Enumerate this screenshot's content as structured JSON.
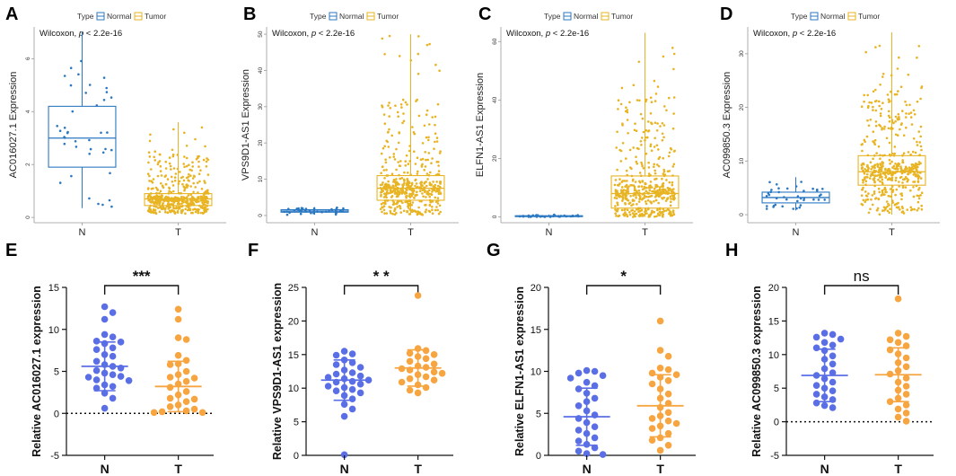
{
  "colors": {
    "normal_box": "#2b78c2",
    "tumor_box": "#e8b423",
    "normal_point": "#5a6ee6",
    "tumor_point": "#f7a540",
    "axis": "#111111"
  },
  "legend": {
    "title": "Type",
    "normal": "Normal",
    "tumor": "Tumor"
  },
  "stat_prefix": "Wilcoxon, ",
  "stat_p": "p",
  "stat_value": " < 2.2e-16",
  "chart_data": [
    {
      "panel": "A",
      "type": "box",
      "ylabel": "AC016027.1 Expression",
      "categories": [
        "N",
        "T"
      ],
      "ylim": [
        -0.2,
        7.2
      ],
      "yticks": [
        0,
        2,
        4,
        6
      ],
      "series": [
        {
          "name": "N",
          "min": 0.35,
          "q1": 1.9,
          "median": 3.0,
          "q3": 4.2,
          "max": 7.0
        },
        {
          "name": "T",
          "min": 0.15,
          "q1": 0.45,
          "median": 0.7,
          "q3": 0.9,
          "max": 3.6
        }
      ]
    },
    {
      "panel": "B",
      "type": "box",
      "ylabel": "VPS9D1-AS1 Expression",
      "categories": [
        "N",
        "T"
      ],
      "ylim": [
        -2,
        52
      ],
      "yticks": [
        0,
        10,
        20,
        30,
        40,
        50
      ],
      "series": [
        {
          "name": "N",
          "min": 0.2,
          "q1": 0.9,
          "median": 1.2,
          "q3": 1.6,
          "max": 2.3
        },
        {
          "name": "T",
          "min": 0.1,
          "q1": 4.2,
          "median": 7.5,
          "q3": 11.0,
          "max": 50.0
        }
      ]
    },
    {
      "panel": "C",
      "type": "box",
      "ylabel": "ELFN1-AS1 Expression",
      "categories": [
        "N",
        "T"
      ],
      "ylim": [
        -2,
        65
      ],
      "yticks": [
        0,
        20,
        40,
        60
      ],
      "series": [
        {
          "name": "N",
          "min": 0.0,
          "q1": 0.1,
          "median": 0.25,
          "q3": 0.4,
          "max": 0.8
        },
        {
          "name": "T",
          "min": 0.0,
          "q1": 3.0,
          "median": 8.0,
          "q3": 14.0,
          "max": 63.0
        }
      ]
    },
    {
      "panel": "D",
      "type": "box",
      "ylabel": "AC099850.3 Expression",
      "categories": [
        "N",
        "T"
      ],
      "ylim": [
        -1.5,
        35
      ],
      "yticks": [
        0,
        10,
        20,
        30
      ],
      "series": [
        {
          "name": "N",
          "min": 0.8,
          "q1": 2.2,
          "median": 3.2,
          "q3": 4.2,
          "max": 7.0
        },
        {
          "name": "T",
          "min": 0.0,
          "q1": 5.5,
          "median": 8.0,
          "q3": 11.0,
          "max": 34.0
        }
      ]
    },
    {
      "panel": "E",
      "type": "scatter",
      "ylabel": "Relative  AC016027.1 expression",
      "categories": [
        "N",
        "T"
      ],
      "ylim": [
        -5,
        15
      ],
      "yticks": [
        -5,
        0,
        5,
        10,
        15
      ],
      "significance": "***",
      "zero_line": true,
      "series": [
        {
          "name": "N",
          "mean": 5.6,
          "sd": 2.9,
          "values": [
            12.7,
            12.0,
            11.2,
            9.4,
            9.1,
            8.6,
            8.3,
            8.5,
            7.8,
            7.6,
            7.0,
            6.8,
            6.2,
            5.8,
            5.6,
            5.4,
            5.1,
            4.8,
            4.6,
            4.4,
            4.3,
            4.0,
            3.9,
            3.4,
            3.2,
            3.0,
            2.4,
            1.8,
            0.6
          ]
        },
        {
          "name": "T",
          "mean": 3.2,
          "sd": 3.0,
          "values": [
            12.4,
            11.2,
            9.0,
            8.8,
            6.9,
            6.3,
            5.9,
            5.8,
            5.0,
            4.6,
            4.3,
            4.2,
            3.8,
            3.5,
            3.1,
            2.6,
            2.2,
            1.8,
            1.7,
            1.4,
            1.0,
            0.8,
            0.5,
            0.3,
            0.2,
            0.1,
            0.1
          ]
        }
      ]
    },
    {
      "panel": "F",
      "type": "scatter",
      "ylabel": "Relative  VPS9D1-AS1 expression",
      "categories": [
        "N",
        "T"
      ],
      "ylim": [
        0,
        25
      ],
      "yticks": [
        0,
        5,
        10,
        15,
        20,
        25
      ],
      "significance": "* *",
      "zero_line": false,
      "series": [
        {
          "name": "N",
          "mean": 11.2,
          "sd": 3.0,
          "values": [
            15.5,
            15.1,
            14.9,
            14.2,
            13.8,
            13.5,
            13.1,
            12.7,
            12.3,
            12.1,
            11.8,
            11.6,
            11.4,
            11.2,
            11.0,
            10.9,
            10.6,
            10.3,
            10.1,
            9.8,
            9.6,
            9.3,
            8.9,
            8.4,
            7.6,
            6.9,
            5.8,
            0.1
          ]
        },
        {
          "name": "T",
          "mean": 13.0,
          "sd": 2.7,
          "values": [
            23.8,
            15.9,
            15.6,
            15.2,
            15.0,
            14.7,
            14.4,
            14.0,
            13.6,
            13.3,
            13.1,
            12.9,
            12.7,
            12.4,
            12.2,
            12.0,
            11.7,
            11.4,
            11.2,
            10.9,
            10.5,
            10.1,
            9.7,
            9.3
          ]
        }
      ]
    },
    {
      "panel": "G",
      "type": "scatter",
      "ylabel": "Relative  ELFN1-AS1 expression",
      "categories": [
        "N",
        "T"
      ],
      "ylim": [
        0,
        20
      ],
      "yticks": [
        0,
        5,
        10,
        15,
        20
      ],
      "significance": "*",
      "zero_line": false,
      "series": [
        {
          "name": "N",
          "mean": 4.6,
          "sd": 3.4,
          "values": [
            10.1,
            10.0,
            9.8,
            9.5,
            9.2,
            8.7,
            8.3,
            7.9,
            7.4,
            6.8,
            6.4,
            5.9,
            5.3,
            4.8,
            4.4,
            3.9,
            3.4,
            3.0,
            2.6,
            2.1,
            1.7,
            1.3,
            0.9,
            0.5,
            0.2,
            0.1
          ]
        },
        {
          "name": "T",
          "mean": 5.9,
          "sd": 3.7,
          "values": [
            16.0,
            12.5,
            11.8,
            10.4,
            10.2,
            9.8,
            9.6,
            9.3,
            8.9,
            8.5,
            7.9,
            7.3,
            6.8,
            6.2,
            5.7,
            5.1,
            4.7,
            4.4,
            4.1,
            3.8,
            3.5,
            3.2,
            2.6,
            2.1,
            1.8,
            1.2,
            0.6
          ]
        }
      ]
    },
    {
      "panel": "H",
      "type": "scatter",
      "ylabel": "Relative  AC099850.3 expression",
      "categories": [
        "N",
        "T"
      ],
      "ylim": [
        -5,
        20
      ],
      "yticks": [
        -5,
        0,
        5,
        10,
        15,
        20
      ],
      "significance": "ns",
      "zero_line": true,
      "series": [
        {
          "name": "N",
          "mean": 6.9,
          "sd": 3.9,
          "values": [
            13.2,
            13.0,
            12.6,
            12.3,
            11.8,
            11.4,
            11.0,
            10.6,
            9.8,
            9.3,
            8.6,
            7.9,
            7.3,
            6.9,
            6.4,
            5.9,
            5.4,
            5.0,
            4.6,
            4.1,
            3.7,
            3.3,
            2.8,
            2.4,
            2.1
          ]
        },
        {
          "name": "T",
          "mean": 7.0,
          "sd": 4.0,
          "values": [
            18.3,
            13.2,
            12.7,
            12.2,
            11.8,
            11.3,
            10.7,
            10.1,
            9.5,
            8.8,
            8.2,
            7.6,
            7.1,
            6.5,
            5.9,
            5.3,
            4.7,
            4.1,
            3.5,
            3.0,
            2.5,
            1.9,
            1.3,
            0.7,
            0.1
          ]
        }
      ]
    }
  ]
}
